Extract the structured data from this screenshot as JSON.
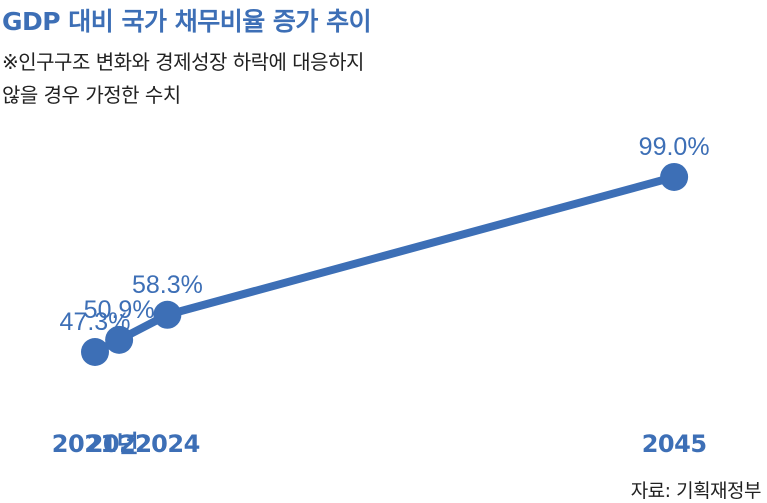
{
  "colors": {
    "accent": "#3d6fb6",
    "text": "#222222"
  },
  "chart_data": {
    "type": "line",
    "title": "GDP 대비 국가 채무비율 증가 추이",
    "subtitle_lines": [
      "※인구구조 변화와 경제성장 하락에 대응하지",
      "않을 경우 가정한 수치"
    ],
    "categories": [
      "2021년",
      "2022",
      "2024",
      "2045"
    ],
    "x": [
      2021,
      2022,
      2024,
      2045
    ],
    "values": [
      47.3,
      50.9,
      58.3,
      99.0
    ],
    "data_labels": [
      "47.3%",
      "50.9%",
      "58.3%",
      "99.0%"
    ],
    "unit": "%",
    "xlabel": "",
    "ylabel": "",
    "grid": false,
    "legend": "none",
    "source": "자료: 기획재정부"
  }
}
